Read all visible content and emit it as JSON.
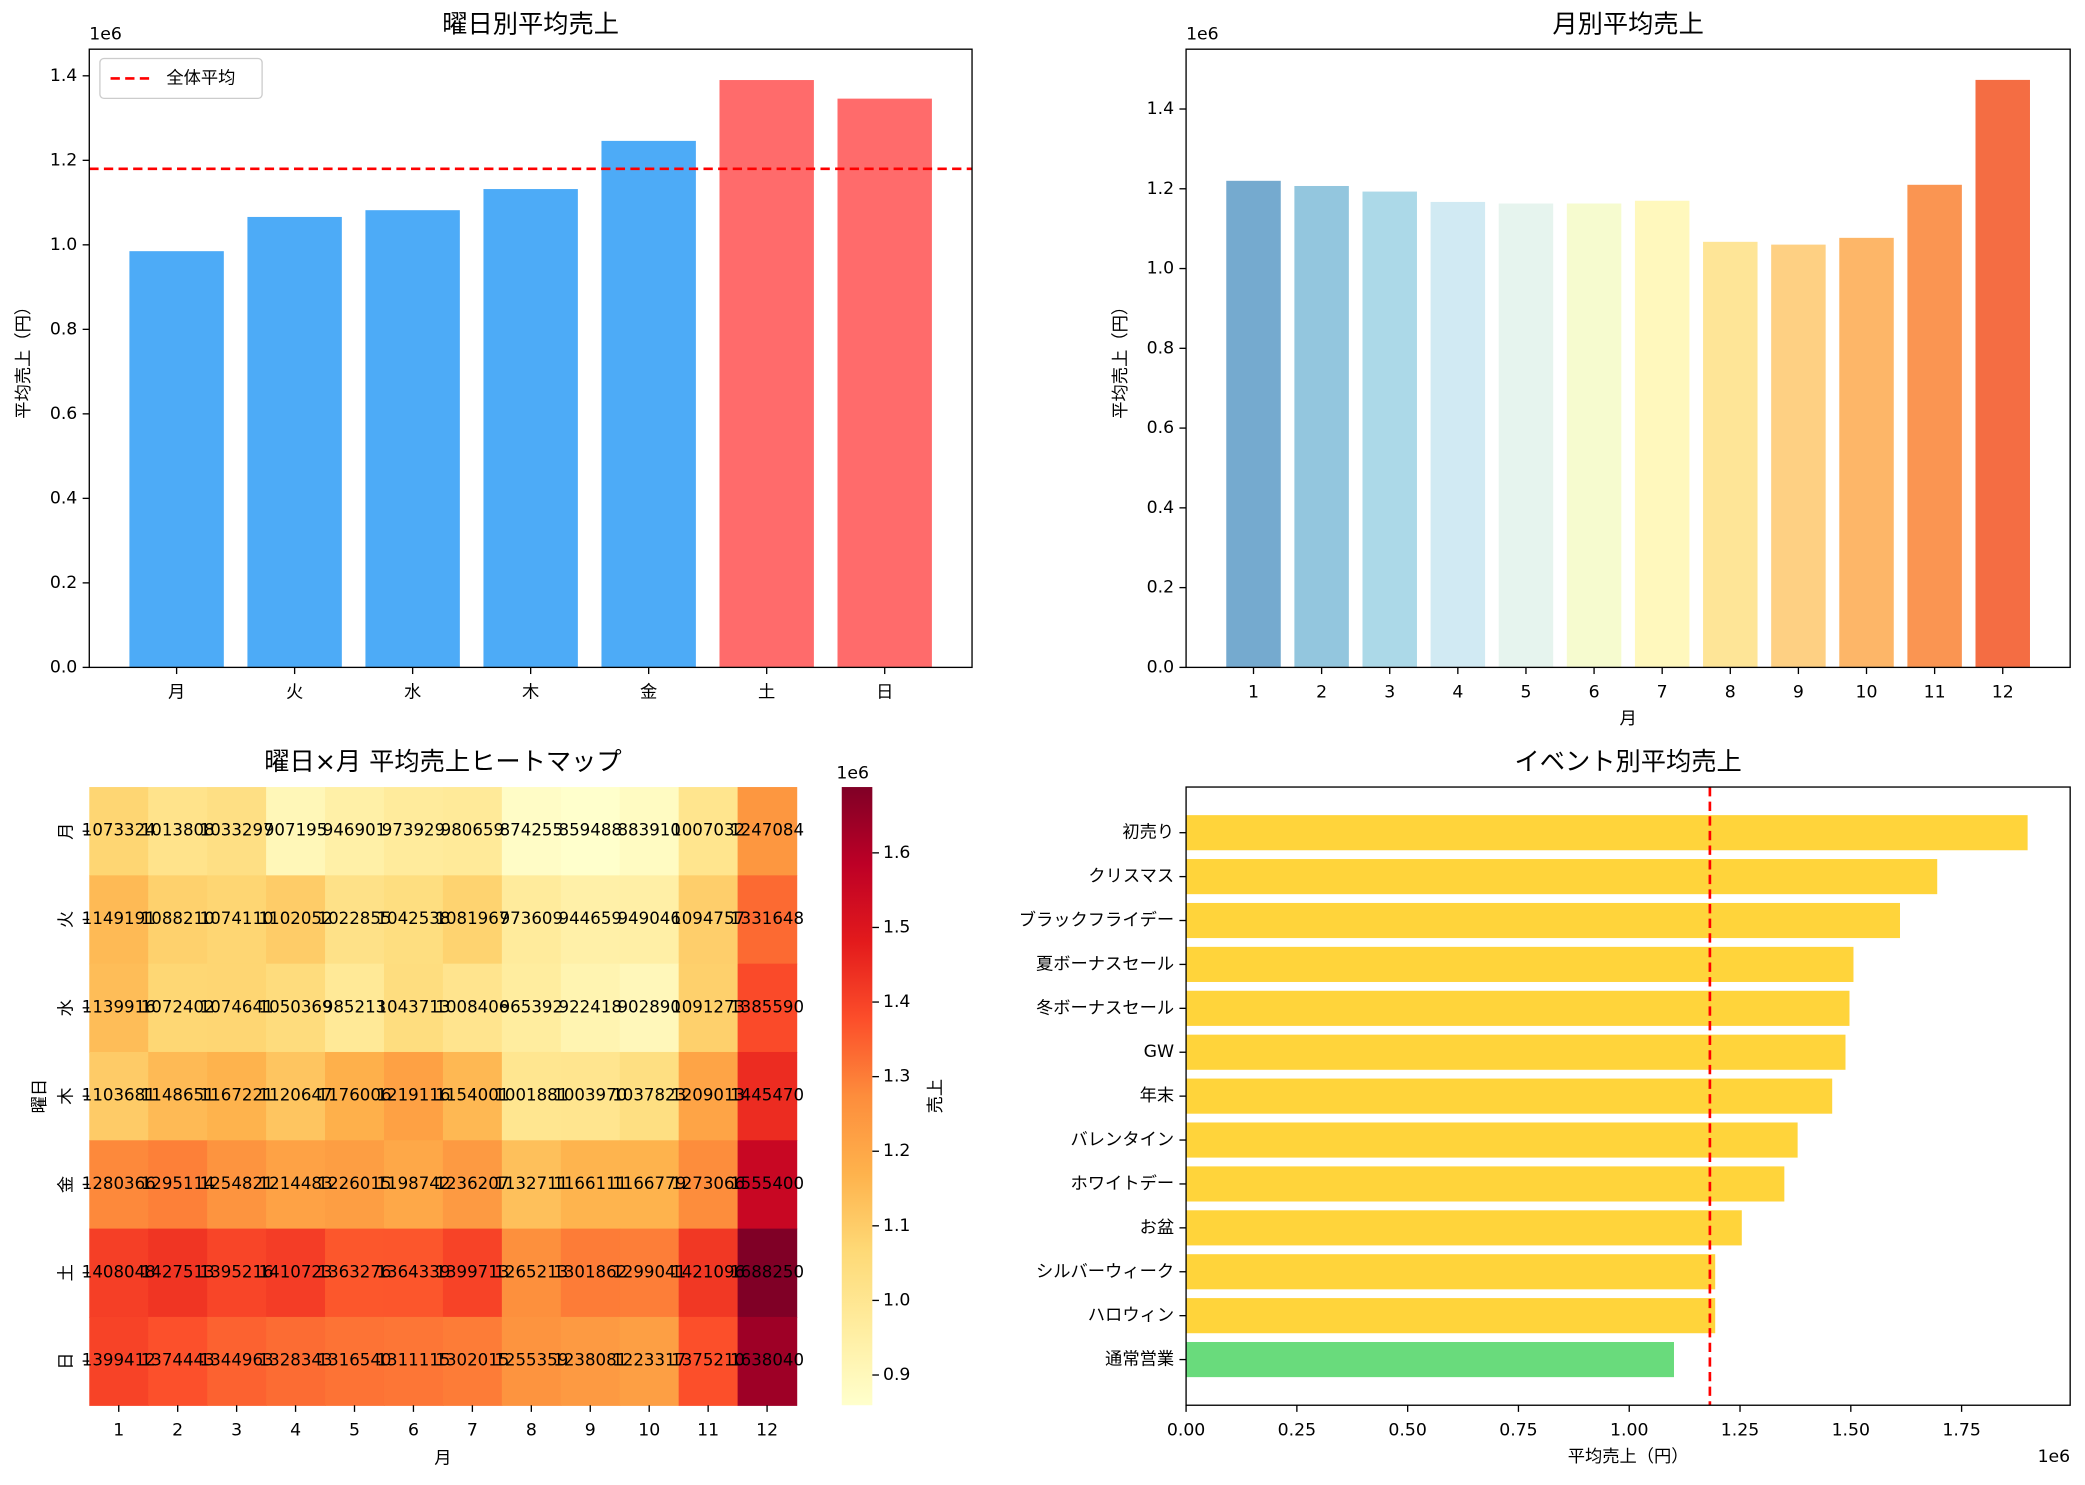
{
  "chart_data": [
    {
      "type": "bar",
      "title": "曜日別平均売上",
      "ylabel": "平均売上（円）",
      "y_offset_label": "1e6",
      "categories": [
        "月",
        "火",
        "水",
        "木",
        "金",
        "土",
        "日"
      ],
      "values": [
        985000,
        1066000,
        1082000,
        1132000,
        1246000,
        1390000,
        1346000
      ],
      "colors": [
        "#4dabf7",
        "#4dabf7",
        "#4dabf7",
        "#4dabf7",
        "#4dabf7",
        "#ff6b6b",
        "#ff6b6b"
      ],
      "ylim": [
        0,
        1463000
      ],
      "yticks": [
        {
          "value": 0,
          "label": "0.0"
        },
        {
          "value": 200000,
          "label": "0.2"
        },
        {
          "value": 400000,
          "label": "0.4"
        },
        {
          "value": 600000,
          "label": "0.6"
        },
        {
          "value": 800000,
          "label": "0.8"
        },
        {
          "value": 1000000,
          "label": "1.0"
        },
        {
          "value": 1200000,
          "label": "1.2"
        },
        {
          "value": 1400000,
          "label": "1.4"
        }
      ],
      "reference_line": {
        "value": 1180000,
        "label": "全体平均",
        "color": "#ff0000",
        "style": "dashed"
      },
      "legend": "upper left"
    },
    {
      "type": "bar",
      "title": "月別平均売上",
      "xlabel": "月",
      "ylabel": "平均売上（円）",
      "y_offset_label": "1e6",
      "categories": [
        "1",
        "2",
        "3",
        "4",
        "5",
        "6",
        "7",
        "8",
        "9",
        "10",
        "11",
        "12"
      ],
      "values": [
        1220000,
        1207000,
        1193000,
        1167000,
        1163000,
        1163000,
        1170000,
        1067000,
        1060000,
        1077000,
        1210000,
        1473000
      ],
      "colors": [
        "#75aacf",
        "#93c6de",
        "#acd9e8",
        "#d1eaf3",
        "#e6f4ee",
        "#f6fbcf",
        "#fff8bd",
        "#fee597",
        "#fed083",
        "#fdb668",
        "#fa9552",
        "#f46d43"
      ],
      "ylim": [
        0,
        1550000
      ],
      "yticks": [
        {
          "value": 0,
          "label": "0.0"
        },
        {
          "value": 200000,
          "label": "0.2"
        },
        {
          "value": 400000,
          "label": "0.4"
        },
        {
          "value": 600000,
          "label": "0.6"
        },
        {
          "value": 800000,
          "label": "0.8"
        },
        {
          "value": 1000000,
          "label": "1.0"
        },
        {
          "value": 1200000,
          "label": "1.2"
        },
        {
          "value": 1400000,
          "label": "1.4"
        }
      ]
    },
    {
      "type": "heatmap",
      "title": "曜日×月 平均売上ヒートマップ",
      "xlabel": "月",
      "ylabel": "曜日",
      "x_categories": [
        "1",
        "2",
        "3",
        "4",
        "5",
        "6",
        "7",
        "8",
        "9",
        "10",
        "11",
        "12"
      ],
      "y_categories": [
        "月",
        "火",
        "水",
        "木",
        "金",
        "土",
        "日"
      ],
      "values": [
        [
          1073324,
          1013808,
          1033297,
          907195,
          946901,
          973929,
          980659,
          874255,
          859488,
          883910,
          1007032,
          1247084
        ],
        [
          1149191,
          1088210,
          1074110,
          1102052,
          1022855,
          1042538,
          1081967,
          973609,
          944659,
          949046,
          1094757,
          1331648
        ],
        [
          1139916,
          1072402,
          1074641,
          1050369,
          985213,
          1043713,
          1008406,
          965392,
          922418,
          902890,
          1091273,
          1385590
        ],
        [
          1103681,
          1148651,
          1167221,
          1120647,
          1176006,
          1219116,
          1154001,
          1001881,
          1003970,
          1037823,
          1209013,
          1445470
        ],
        [
          1280366,
          1295114,
          1254821,
          1214483,
          1226015,
          1198742,
          1236207,
          1132711,
          1166111,
          1166779,
          1273066,
          1555400
        ],
        [
          1408048,
          1427513,
          1395216,
          1410723,
          1363276,
          1364339,
          1399713,
          1265213,
          1301862,
          1299041,
          1421096,
          1688250
        ],
        [
          1399412,
          1374443,
          1344963,
          1328343,
          1316540,
          1311115,
          1302015,
          1255359,
          1238081,
          1223317,
          1375210,
          1638040
        ]
      ],
      "colormap": [
        "#ffffcc",
        "#ffeda0",
        "#fed976",
        "#feb24c",
        "#fd8d3c",
        "#fc4e2a",
        "#e31a1c",
        "#bd0026",
        "#800026"
      ],
      "colorbar_label": "売上",
      "colorbar_offset_label": "1e6",
      "colorbar_lim": [
        859488,
        1688250
      ],
      "colorbar_ticks": [
        {
          "value": 900000,
          "label": "0.9"
        },
        {
          "value": 1000000,
          "label": "1.0"
        },
        {
          "value": 1100000,
          "label": "1.1"
        },
        {
          "value": 1200000,
          "label": "1.2"
        },
        {
          "value": 1300000,
          "label": "1.3"
        },
        {
          "value": 1400000,
          "label": "1.4"
        },
        {
          "value": 1500000,
          "label": "1.5"
        },
        {
          "value": 1600000,
          "label": "1.6"
        }
      ]
    },
    {
      "type": "barh",
      "title": "イベント別平均売上",
      "xlabel": "平均売上（円）",
      "x_offset_label": "1e6",
      "categories": [
        "初売り",
        "クリスマス",
        "ブラックフライデー",
        "夏ボーナスセール",
        "冬ボーナスセール",
        "GW",
        "年末",
        "バレンタイン",
        "ホワイトデー",
        "お盆",
        "シルバーウィーク",
        "ハロウィン",
        "通常営業"
      ],
      "values": [
        1899000,
        1695000,
        1611000,
        1506000,
        1497000,
        1488000,
        1458000,
        1380000,
        1350000,
        1254000,
        1194000,
        1194000,
        1101000
      ],
      "colors": [
        "#ffd43b",
        "#ffd43b",
        "#ffd43b",
        "#ffd43b",
        "#ffd43b",
        "#ffd43b",
        "#ffd43b",
        "#ffd43b",
        "#ffd43b",
        "#ffd43b",
        "#ffd43b",
        "#ffd43b",
        "#69db7c"
      ],
      "xlim": [
        0,
        1995000
      ],
      "xticks": [
        {
          "value": 0,
          "label": "0.00"
        },
        {
          "value": 250000,
          "label": "0.25"
        },
        {
          "value": 500000,
          "label": "0.50"
        },
        {
          "value": 750000,
          "label": "0.75"
        },
        {
          "value": 1000000,
          "label": "1.00"
        },
        {
          "value": 1250000,
          "label": "1.25"
        },
        {
          "value": 1500000,
          "label": "1.50"
        },
        {
          "value": 1750000,
          "label": "1.75"
        }
      ],
      "reference_line": {
        "value": 1182000,
        "color": "#ff0000",
        "style": "dashed"
      }
    }
  ]
}
